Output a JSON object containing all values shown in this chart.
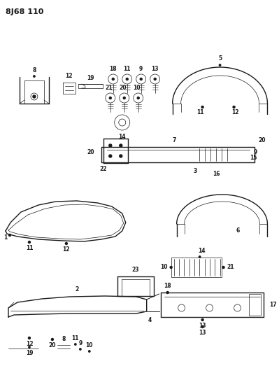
{
  "title": "8J68 110",
  "bg_color": "#ffffff",
  "line_color": "#1a1a1a",
  "title_fontsize": 8,
  "label_fontsize": 5.5,
  "lw_main": 1.0,
  "lw_thin": 0.5,
  "lw_med": 0.7
}
